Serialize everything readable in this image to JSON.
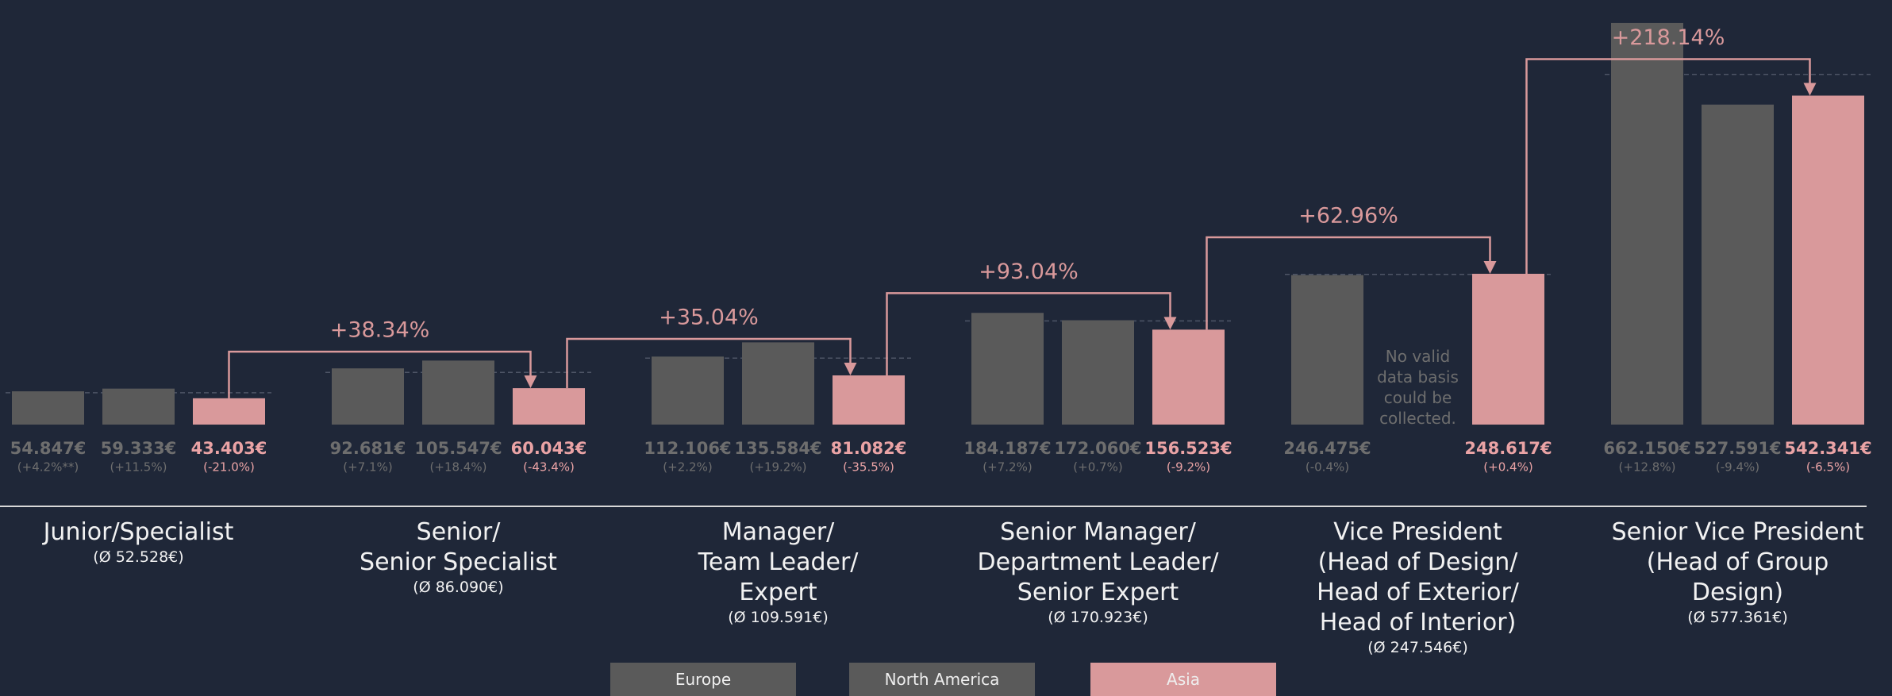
{
  "chart_data": {
    "type": "bar",
    "categories": [
      "Junior/Specialist",
      "Senior/\nSenior Specialist",
      "Manager/\nTeam Leader/\nExpert",
      "Senior Manager/\nDepartment Leader/\nSenior Expert",
      "Vice President\n(Head of Design/\nHead of Exterior/\nHead of Interior)",
      "Senior Vice President\n(Head of Group\nDesign)"
    ],
    "averages": [
      52528,
      86090,
      109591,
      170923,
      247546,
      577361
    ],
    "average_labels": [
      "(Ø 52.528€)",
      "(Ø 86.090€)",
      "(Ø 109.591€)",
      "(Ø 170.923€)",
      "(Ø  247.546€)",
      "(Ø 577.361€)"
    ],
    "series": [
      {
        "name": "Europe",
        "color": "#5a5a5a",
        "label_color": "#6e6e6e",
        "values": [
          54847,
          92681,
          112106,
          184187,
          246475,
          662150
        ],
        "value_labels": [
          "54.847€",
          "92.681€",
          "112.106€",
          "184.187€",
          "246.475€",
          "662.150€"
        ],
        "value_notes": [
          "(+4.2%**)",
          "(+7.1%)",
          "(+2.2%)",
          "(+7.2%)",
          "(-0.4%)",
          "(+12.8%)"
        ]
      },
      {
        "name": "North America",
        "color": "#5a5a5a",
        "label_color": "#6e6e6e",
        "values": [
          59333,
          105547,
          135584,
          172060,
          null,
          527591
        ],
        "value_labels": [
          "59.333€",
          "105.547€",
          "135.584€",
          "172.060€",
          null,
          "527.591€"
        ],
        "value_notes": [
          "(+11.5%)",
          "(+18.4%)",
          "(+19.2%)",
          "(+0.7%)",
          null,
          "(-9.4%)"
        ]
      },
      {
        "name": "Asia",
        "color": "#d9999b",
        "label_color": "#eaa3a5",
        "values": [
          43403,
          60043,
          81082,
          156523,
          248617,
          542341
        ],
        "value_labels": [
          "43.403€",
          "60.043€",
          "81.082€",
          "156.523€",
          "248.617€",
          "542.341€"
        ],
        "value_notes": [
          "(-21.0%)",
          "(-43.4%)",
          "(-35.5%)",
          "(-9.2%)",
          "(+0.4%)",
          "(-6.5%)"
        ]
      }
    ],
    "increase_labels": [
      "+38.34%",
      "+35.04%",
      "+93.04%",
      "+62.96%",
      "+218.14%"
    ],
    "missing_note": "No valid\ndata basis\ncould be\ncollected.",
    "ylim": [
      0,
      700000
    ]
  }
}
